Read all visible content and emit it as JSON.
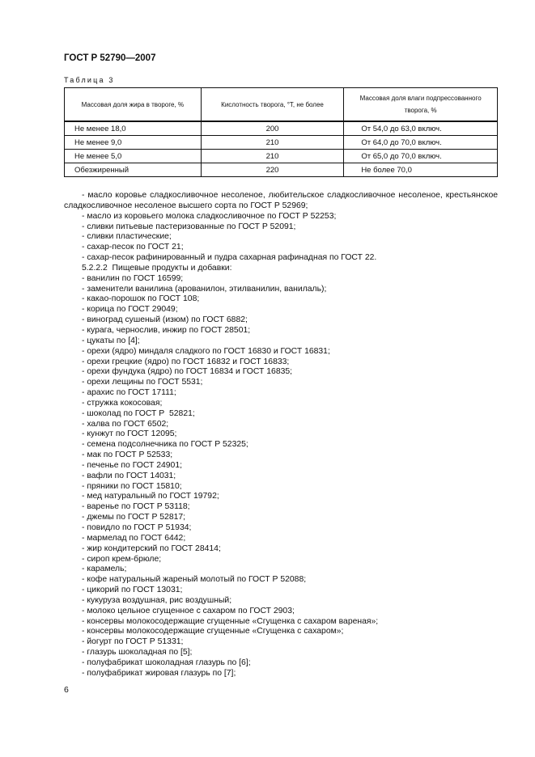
{
  "header": {
    "title": "ГОСТ Р 52790—2007"
  },
  "table": {
    "caption": "Таблица 3",
    "columns": [
      "Массовая доля жира в твороге, %",
      "Кислотность творога, °Т, не более",
      "Массовая доля влаги подпрессованного творога, %"
    ],
    "rows": [
      [
        "Не менее 18,0",
        "200",
        "От 54,0 до 63,0 включ."
      ],
      [
        "Не менее 9,0",
        "210",
        "От 64,0 до 70,0 включ."
      ],
      [
        "Не менее 5,0",
        "210",
        "От 65,0 до 70,0 включ."
      ],
      [
        "Обезжиренный",
        "220",
        "Не более 70,0"
      ]
    ]
  },
  "body": {
    "first_item": "- масло коровье сладкосливочное несоленое, любительское сладкосливочное несоленое, крестьянское сладкосливочное несоленое высшего сорта по ГОСТ Р 52969;",
    "items_a": [
      "- масло из коровьего молока сладкосливочное по ГОСТ Р 52253;",
      "- сливки питьевые пастеризованные по ГОСТ Р 52091;",
      "- сливки пластические;",
      "- сахар-песок по ГОСТ 21;",
      "- сахар-песок рафинированный и пудра сахарная рафинадная по ГОСТ 22."
    ],
    "section": "5.2.2.2  Пищевые продукты и добавки:",
    "items_b": [
      "- ванилин по ГОСТ 16599;",
      "- заменители ванилина (арованилон, этилванилин, ванилаль);",
      "- какао-порошок по ГОСТ 108;",
      "- корица по ГОСТ 29049;",
      "- виноград сушеный (изюм) по ГОСТ 6882;",
      "- курага, чернослив, инжир по ГОСТ 28501;",
      "- цукаты по [4];",
      "- орехи (ядро) миндаля сладкого по ГОСТ 16830 и ГОСТ 16831;",
      "- орехи грецкие (ядро) по ГОСТ 16832 и ГОСТ 16833;",
      "- орехи фундука (ядро) по ГОСТ 16834 и ГОСТ 16835;",
      "- орехи лещины по ГОСТ 5531;",
      "- арахис по ГОСТ 17111;",
      "- стружка кокосовая;",
      "- шоколад по ГОСТ Р  52821;",
      "- халва по ГОСТ 6502;",
      "- кунжут по ГОСТ 12095;",
      "- семена подсолнечника по ГОСТ Р 52325;",
      "- мак по ГОСТ Р 52533;",
      "- печенье по ГОСТ 24901;",
      "- вафли по ГОСТ 14031;",
      "- пряники по ГОСТ 15810;",
      "- мед натуральный по ГОСТ 19792;",
      "- варенье по ГОСТ Р 53118;",
      "- джемы по ГОСТ Р 52817;",
      "- повидло по ГОСТ Р 51934;",
      "- мармелад по ГОСТ 6442;",
      "- жир кондитерский по ГОСТ 28414;",
      "- сироп крем-брюле;",
      "- карамель;",
      "- кофе натуральный жареный молотый по ГОСТ Р 52088;",
      "- цикорий по ГОСТ 13031;",
      "- кукуруза воздушная, рис воздушный;",
      "- молоко цельное сгущенное с сахаром по ГОСТ 2903;",
      "- консервы молокосодержащие сгущенные «Сгущенка с сахаром вареная»;",
      "- консервы молокосодержащие сгущенные «Сгущенка с сахаром»;",
      "- йогурт по ГОСТ Р 51331;",
      "- глазурь шоколадная по [5];",
      "- полуфабрикат шоколадная глазурь по [6];",
      "- полуфабрикат жировая глазурь по [7];"
    ]
  },
  "footer": {
    "page_number": "6"
  }
}
